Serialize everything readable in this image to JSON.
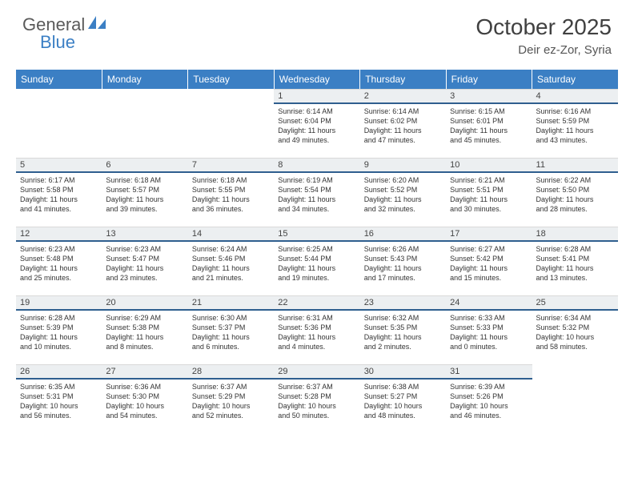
{
  "logo": {
    "text1": "General",
    "text2": "Blue"
  },
  "header": {
    "title": "October 2025",
    "location": "Deir ez-Zor, Syria"
  },
  "colors": {
    "header_bg": "#3b7fc4",
    "header_text": "#ffffff",
    "daynum_bg": "#eceff1",
    "daynum_border": "#2f5f8f",
    "body_text": "#333333"
  },
  "weekdays": [
    "Sunday",
    "Monday",
    "Tuesday",
    "Wednesday",
    "Thursday",
    "Friday",
    "Saturday"
  ],
  "weeks": [
    [
      {
        "empty": true
      },
      {
        "empty": true
      },
      {
        "empty": true
      },
      {
        "n": "1",
        "sr": "Sunrise: 6:14 AM",
        "ss": "Sunset: 6:04 PM",
        "d1": "Daylight: 11 hours",
        "d2": "and 49 minutes."
      },
      {
        "n": "2",
        "sr": "Sunrise: 6:14 AM",
        "ss": "Sunset: 6:02 PM",
        "d1": "Daylight: 11 hours",
        "d2": "and 47 minutes."
      },
      {
        "n": "3",
        "sr": "Sunrise: 6:15 AM",
        "ss": "Sunset: 6:01 PM",
        "d1": "Daylight: 11 hours",
        "d2": "and 45 minutes."
      },
      {
        "n": "4",
        "sr": "Sunrise: 6:16 AM",
        "ss": "Sunset: 5:59 PM",
        "d1": "Daylight: 11 hours",
        "d2": "and 43 minutes."
      }
    ],
    [
      {
        "n": "5",
        "sr": "Sunrise: 6:17 AM",
        "ss": "Sunset: 5:58 PM",
        "d1": "Daylight: 11 hours",
        "d2": "and 41 minutes."
      },
      {
        "n": "6",
        "sr": "Sunrise: 6:18 AM",
        "ss": "Sunset: 5:57 PM",
        "d1": "Daylight: 11 hours",
        "d2": "and 39 minutes."
      },
      {
        "n": "7",
        "sr": "Sunrise: 6:18 AM",
        "ss": "Sunset: 5:55 PM",
        "d1": "Daylight: 11 hours",
        "d2": "and 36 minutes."
      },
      {
        "n": "8",
        "sr": "Sunrise: 6:19 AM",
        "ss": "Sunset: 5:54 PM",
        "d1": "Daylight: 11 hours",
        "d2": "and 34 minutes."
      },
      {
        "n": "9",
        "sr": "Sunrise: 6:20 AM",
        "ss": "Sunset: 5:52 PM",
        "d1": "Daylight: 11 hours",
        "d2": "and 32 minutes."
      },
      {
        "n": "10",
        "sr": "Sunrise: 6:21 AM",
        "ss": "Sunset: 5:51 PM",
        "d1": "Daylight: 11 hours",
        "d2": "and 30 minutes."
      },
      {
        "n": "11",
        "sr": "Sunrise: 6:22 AM",
        "ss": "Sunset: 5:50 PM",
        "d1": "Daylight: 11 hours",
        "d2": "and 28 minutes."
      }
    ],
    [
      {
        "n": "12",
        "sr": "Sunrise: 6:23 AM",
        "ss": "Sunset: 5:48 PM",
        "d1": "Daylight: 11 hours",
        "d2": "and 25 minutes."
      },
      {
        "n": "13",
        "sr": "Sunrise: 6:23 AM",
        "ss": "Sunset: 5:47 PM",
        "d1": "Daylight: 11 hours",
        "d2": "and 23 minutes."
      },
      {
        "n": "14",
        "sr": "Sunrise: 6:24 AM",
        "ss": "Sunset: 5:46 PM",
        "d1": "Daylight: 11 hours",
        "d2": "and 21 minutes."
      },
      {
        "n": "15",
        "sr": "Sunrise: 6:25 AM",
        "ss": "Sunset: 5:44 PM",
        "d1": "Daylight: 11 hours",
        "d2": "and 19 minutes."
      },
      {
        "n": "16",
        "sr": "Sunrise: 6:26 AM",
        "ss": "Sunset: 5:43 PM",
        "d1": "Daylight: 11 hours",
        "d2": "and 17 minutes."
      },
      {
        "n": "17",
        "sr": "Sunrise: 6:27 AM",
        "ss": "Sunset: 5:42 PM",
        "d1": "Daylight: 11 hours",
        "d2": "and 15 minutes."
      },
      {
        "n": "18",
        "sr": "Sunrise: 6:28 AM",
        "ss": "Sunset: 5:41 PM",
        "d1": "Daylight: 11 hours",
        "d2": "and 13 minutes."
      }
    ],
    [
      {
        "n": "19",
        "sr": "Sunrise: 6:28 AM",
        "ss": "Sunset: 5:39 PM",
        "d1": "Daylight: 11 hours",
        "d2": "and 10 minutes."
      },
      {
        "n": "20",
        "sr": "Sunrise: 6:29 AM",
        "ss": "Sunset: 5:38 PM",
        "d1": "Daylight: 11 hours",
        "d2": "and 8 minutes."
      },
      {
        "n": "21",
        "sr": "Sunrise: 6:30 AM",
        "ss": "Sunset: 5:37 PM",
        "d1": "Daylight: 11 hours",
        "d2": "and 6 minutes."
      },
      {
        "n": "22",
        "sr": "Sunrise: 6:31 AM",
        "ss": "Sunset: 5:36 PM",
        "d1": "Daylight: 11 hours",
        "d2": "and 4 minutes."
      },
      {
        "n": "23",
        "sr": "Sunrise: 6:32 AM",
        "ss": "Sunset: 5:35 PM",
        "d1": "Daylight: 11 hours",
        "d2": "and 2 minutes."
      },
      {
        "n": "24",
        "sr": "Sunrise: 6:33 AM",
        "ss": "Sunset: 5:33 PM",
        "d1": "Daylight: 11 hours",
        "d2": "and 0 minutes."
      },
      {
        "n": "25",
        "sr": "Sunrise: 6:34 AM",
        "ss": "Sunset: 5:32 PM",
        "d1": "Daylight: 10 hours",
        "d2": "and 58 minutes."
      }
    ],
    [
      {
        "n": "26",
        "sr": "Sunrise: 6:35 AM",
        "ss": "Sunset: 5:31 PM",
        "d1": "Daylight: 10 hours",
        "d2": "and 56 minutes."
      },
      {
        "n": "27",
        "sr": "Sunrise: 6:36 AM",
        "ss": "Sunset: 5:30 PM",
        "d1": "Daylight: 10 hours",
        "d2": "and 54 minutes."
      },
      {
        "n": "28",
        "sr": "Sunrise: 6:37 AM",
        "ss": "Sunset: 5:29 PM",
        "d1": "Daylight: 10 hours",
        "d2": "and 52 minutes."
      },
      {
        "n": "29",
        "sr": "Sunrise: 6:37 AM",
        "ss": "Sunset: 5:28 PM",
        "d1": "Daylight: 10 hours",
        "d2": "and 50 minutes."
      },
      {
        "n": "30",
        "sr": "Sunrise: 6:38 AM",
        "ss": "Sunset: 5:27 PM",
        "d1": "Daylight: 10 hours",
        "d2": "and 48 minutes."
      },
      {
        "n": "31",
        "sr": "Sunrise: 6:39 AM",
        "ss": "Sunset: 5:26 PM",
        "d1": "Daylight: 10 hours",
        "d2": "and 46 minutes."
      },
      {
        "empty": true
      }
    ]
  ]
}
